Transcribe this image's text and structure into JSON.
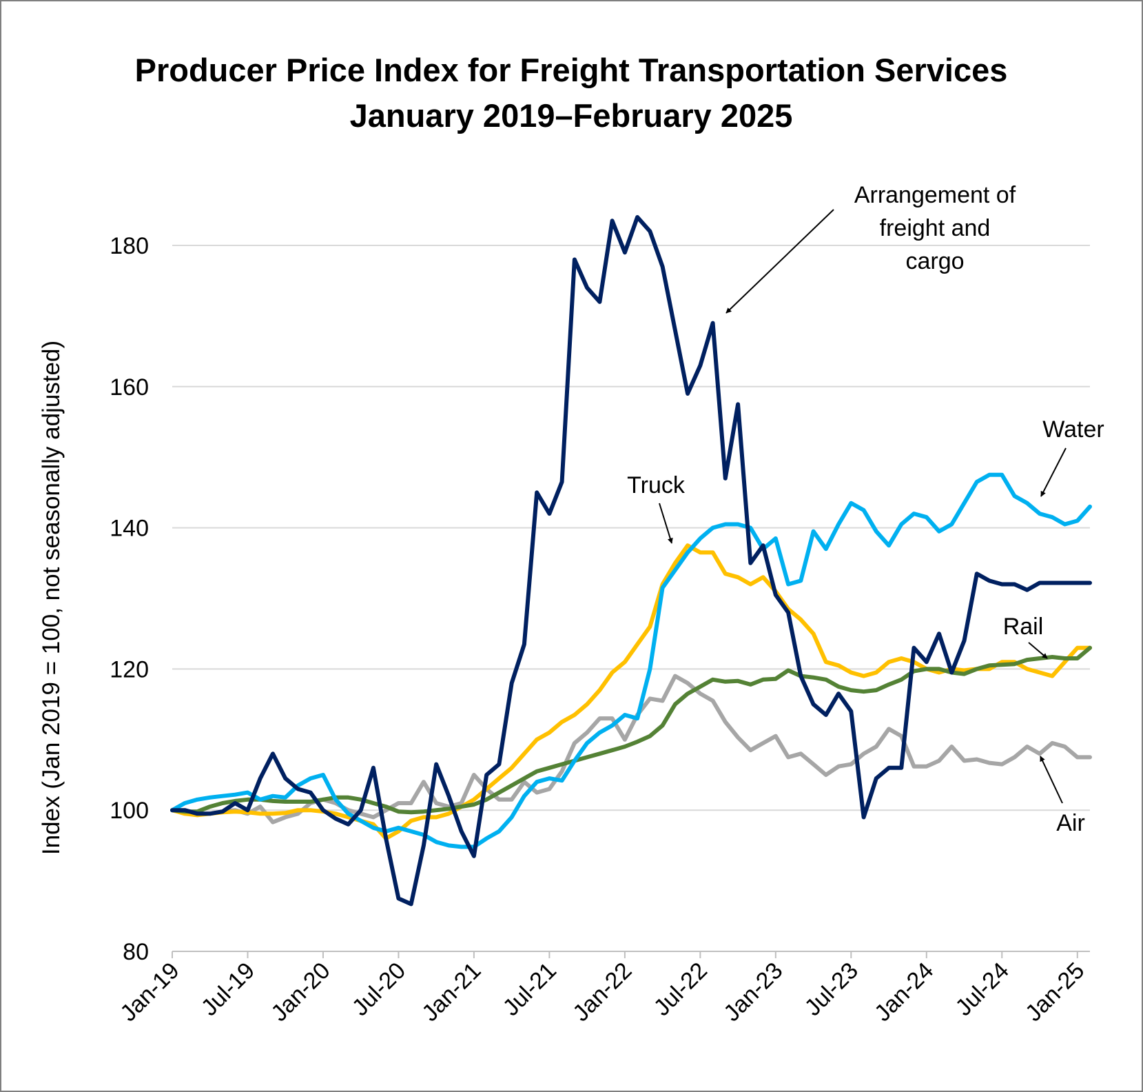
{
  "chart_data": {
    "type": "line",
    "title": "Producer Price Index for Freight Transportation Services",
    "subtitle": "January 2019–February 2025",
    "ylabel": "Index (Jan 2019 = 100, not seasonally adjusted)",
    "xlabel": "",
    "ylim": [
      80,
      180
    ],
    "yticks": [
      80,
      100,
      120,
      140,
      160,
      180
    ],
    "xticks": [
      "Jan-19",
      "Jul-19",
      "Jan-20",
      "Jul-20",
      "Jan-21",
      "Jul-21",
      "Jan-22",
      "Jul-22",
      "Jan-23",
      "Jul-23",
      "Jan-24",
      "Jul-24",
      "Jan-25"
    ],
    "months": 74,
    "grid": true,
    "series": [
      {
        "name": "Air",
        "label": "Air",
        "color": "#a6a6a6",
        "values": [
          100,
          100,
          99.5,
          99.5,
          99.8,
          100,
          99.5,
          100.5,
          98.3,
          99,
          99.5,
          101,
          101.5,
          101,
          100,
          99.5,
          99,
          100,
          101,
          101,
          104,
          101,
          100.5,
          101,
          105,
          103,
          101.5,
          101.5,
          104,
          102.5,
          103,
          105.5,
          109.5,
          111,
          113,
          113,
          110,
          113.5,
          115.8,
          115.5,
          119,
          118,
          116.5,
          115.5,
          112.5,
          110.3,
          108.5,
          109.5,
          110.5,
          107.5,
          108,
          106.5,
          105,
          106.2,
          106.5,
          108,
          109,
          111.5,
          110.5,
          106.2,
          106.2,
          107,
          109,
          107,
          107.2,
          106.7,
          106.5,
          107.5,
          109,
          108,
          109.5,
          109,
          107.5,
          107.5
        ]
      },
      {
        "name": "Truck",
        "label": "Truck",
        "color": "#ffc000",
        "values": [
          100,
          99.5,
          99.3,
          99.5,
          99.7,
          99.8,
          99.7,
          99.5,
          99.5,
          99.6,
          100,
          100,
          99.8,
          99.5,
          99,
          98.5,
          98,
          96,
          97,
          98.5,
          99,
          99,
          99.5,
          100.5,
          101.5,
          103,
          104.5,
          106,
          108,
          110,
          111,
          112.5,
          113.5,
          115,
          117,
          119.5,
          121,
          123.5,
          126,
          132,
          135,
          137.5,
          136.5,
          136.5,
          133.5,
          133,
          132,
          133,
          131,
          128.5,
          127,
          125,
          121,
          120.5,
          119.5,
          119,
          119.5,
          121,
          121.5,
          121,
          120,
          119.5,
          120,
          119.8,
          120,
          120,
          121,
          121,
          120,
          119.5,
          119,
          121,
          123,
          123
        ]
      },
      {
        "name": "Rail",
        "label": "Rail",
        "color": "#548235",
        "values": [
          100,
          99.8,
          99.8,
          100.5,
          101,
          101.3,
          101.5,
          101.5,
          101.3,
          101.2,
          101.2,
          101.2,
          101.5,
          101.8,
          101.8,
          101.5,
          101,
          100.5,
          99.8,
          99.7,
          99.8,
          100,
          100.2,
          100.5,
          100.8,
          101.5,
          102.5,
          103.5,
          104.5,
          105.5,
          106,
          106.5,
          107,
          107.5,
          108,
          108.5,
          109,
          109.7,
          110.5,
          112,
          115,
          116.5,
          117.5,
          118.5,
          118.2,
          118.3,
          117.8,
          118.5,
          118.6,
          119.8,
          119,
          118.8,
          118.5,
          117.5,
          117,
          116.8,
          117,
          117.8,
          118.5,
          119.7,
          120,
          120,
          119.5,
          119.3,
          120,
          120.5,
          120.6,
          120.7,
          121.3,
          121.5,
          121.7,
          121.5,
          121.5,
          123
        ]
      },
      {
        "name": "Water",
        "label": "Water",
        "color": "#00b0f0",
        "values": [
          100,
          101,
          101.5,
          101.8,
          102,
          102.2,
          102.5,
          101.5,
          102,
          101.8,
          103.5,
          104.5,
          105,
          101.5,
          99.5,
          98.5,
          97.5,
          97,
          97.5,
          97,
          96.5,
          95.5,
          95,
          94.8,
          94.8,
          96,
          97,
          99,
          102,
          104,
          104.5,
          104.2,
          107,
          109.5,
          111,
          112,
          113.5,
          113,
          120,
          131.5,
          134,
          136.5,
          138.5,
          140,
          140.5,
          140.5,
          140,
          137,
          138.5,
          132,
          132.5,
          139.5,
          137,
          140.5,
          143.5,
          142.5,
          139.5,
          137.5,
          140.5,
          142,
          141.5,
          139.5,
          140.5,
          143.5,
          146.5,
          147.5,
          147.5,
          144.5,
          143.5,
          142,
          141.5,
          140.5,
          141,
          143
        ]
      },
      {
        "name": "Arrangement of freight and cargo",
        "label": "Arrangement of freight and cargo",
        "label_lines": [
          "Arrangement of",
          "freight and",
          "cargo"
        ],
        "color": "#002060",
        "values": [
          100,
          100,
          99.5,
          99.5,
          99.8,
          101,
          100,
          104.5,
          108,
          104.5,
          103,
          102.5,
          100,
          98.8,
          98,
          100,
          106,
          96,
          87.5,
          86.7,
          95,
          106.5,
          102,
          97,
          93.5,
          105,
          106.5,
          118,
          123.5,
          145,
          142,
          146.5,
          178,
          174,
          172,
          183.5,
          179,
          184,
          182,
          177,
          168,
          159,
          163,
          169,
          147,
          157.5,
          135,
          137.5,
          130.5,
          128,
          119,
          115,
          113.5,
          116.5,
          114,
          99,
          104.5,
          106,
          106,
          123,
          121,
          125,
          119.5,
          124,
          133.5,
          132.5,
          132,
          132,
          131.2,
          132.2,
          132.2,
          132.2,
          132.2,
          132.2
        ]
      }
    ]
  }
}
